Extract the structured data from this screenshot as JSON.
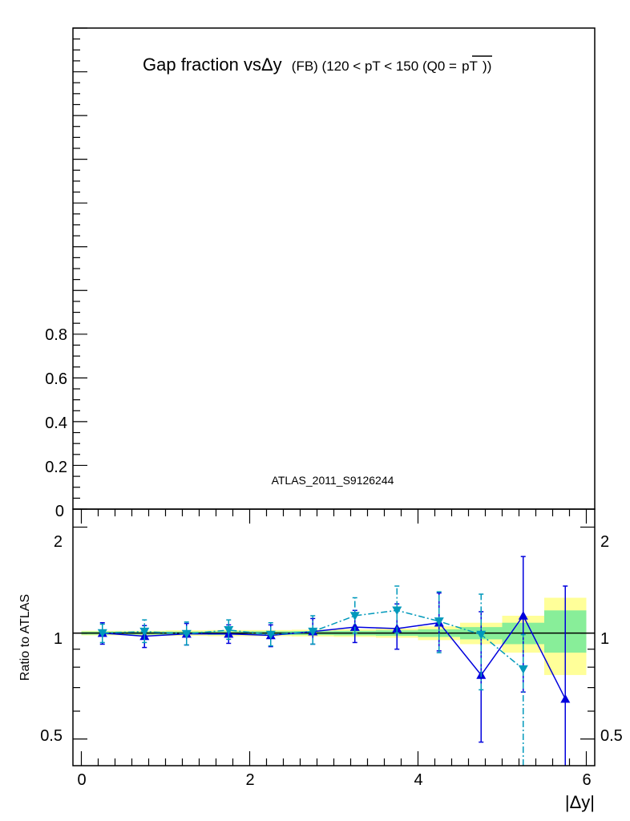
{
  "chart_data": [
    {
      "type": "line",
      "panel": "main",
      "title": "Gap fraction vsΔy",
      "title_sub": "(FB) (120 < pT < 150 (Q0 =",
      "title_overline": "pT",
      "title_close": "))",
      "annotation": "ATLAS_2011_S9126244",
      "yticks": [
        "0.2",
        "0.4",
        "0.6",
        "0.8"
      ],
      "ytick_cut": "0",
      "ylim": [
        0,
        2.2
      ]
    },
    {
      "type": "line",
      "panel": "ratio",
      "ylabel": "Ratio to ATLAS",
      "xlabel": "|Δy|",
      "xticks": [
        "0",
        "2",
        "4",
        "6"
      ],
      "yticks_left": [
        "0.5",
        "1",
        "2"
      ],
      "yticks_right": [
        "0.5",
        "1",
        "2"
      ],
      "xlim": [
        -0.1,
        6.1
      ],
      "ylim": [
        0.42,
        2.25
      ],
      "log_y": true,
      "reference_line": 1.0,
      "bands": [
        {
          "x0": 0.0,
          "x1": 0.5,
          "lo_yellow": 0.985,
          "hi_yellow": 1.015,
          "lo_green": 0.99,
          "hi_green": 1.01
        },
        {
          "x0": 0.5,
          "x1": 1.0,
          "lo_yellow": 0.985,
          "hi_yellow": 1.015,
          "lo_green": 0.99,
          "hi_green": 1.01
        },
        {
          "x0": 1.0,
          "x1": 1.5,
          "lo_yellow": 0.982,
          "hi_yellow": 1.018,
          "lo_green": 0.99,
          "hi_green": 1.01
        },
        {
          "x0": 1.5,
          "x1": 2.0,
          "lo_yellow": 0.98,
          "hi_yellow": 1.02,
          "lo_green": 0.988,
          "hi_green": 1.012
        },
        {
          "x0": 2.0,
          "x1": 2.5,
          "lo_yellow": 0.98,
          "hi_yellow": 1.02,
          "lo_green": 0.988,
          "hi_green": 1.012
        },
        {
          "x0": 2.5,
          "x1": 3.0,
          "lo_yellow": 0.978,
          "hi_yellow": 1.022,
          "lo_green": 0.987,
          "hi_green": 1.013
        },
        {
          "x0": 3.0,
          "x1": 3.5,
          "lo_yellow": 0.975,
          "hi_yellow": 1.025,
          "lo_green": 0.985,
          "hi_green": 1.015
        },
        {
          "x0": 3.5,
          "x1": 4.0,
          "lo_yellow": 0.97,
          "hi_yellow": 1.03,
          "lo_green": 0.982,
          "hi_green": 1.018
        },
        {
          "x0": 4.0,
          "x1": 4.5,
          "lo_yellow": 0.955,
          "hi_yellow": 1.045,
          "lo_green": 0.975,
          "hi_green": 1.025
        },
        {
          "x0": 4.5,
          "x1": 5.0,
          "lo_yellow": 0.93,
          "hi_yellow": 1.07,
          "lo_green": 0.96,
          "hi_green": 1.04
        },
        {
          "x0": 5.0,
          "x1": 5.5,
          "lo_yellow": 0.88,
          "hi_yellow": 1.12,
          "lo_green": 0.93,
          "hi_green": 1.07
        },
        {
          "x0": 5.5,
          "x1": 6.0,
          "lo_yellow": 0.76,
          "hi_yellow": 1.26,
          "lo_green": 0.88,
          "hi_green": 1.16
        }
      ],
      "series": [
        {
          "marker": "triangle-up",
          "color": "#0000dd",
          "dash": "solid",
          "x": [
            0.25,
            0.75,
            1.25,
            1.75,
            2.25,
            2.75,
            3.25,
            3.75,
            4.25,
            4.75,
            5.25,
            5.75
          ],
          "y": [
            1.0,
            0.98,
            0.995,
            0.995,
            0.985,
            1.01,
            1.04,
            1.03,
            1.07,
            0.76,
            1.12,
            0.65
          ],
          "err_lo": [
            0.07,
            0.07,
            0.07,
            0.06,
            0.07,
            0.08,
            0.1,
            0.13,
            0.18,
            0.27,
            0.44,
            0.65
          ],
          "err_hi": [
            0.07,
            0.07,
            0.07,
            0.06,
            0.07,
            0.09,
            0.12,
            0.18,
            0.23,
            0.39,
            0.53,
            0.71
          ]
        },
        {
          "marker": "triangle-down",
          "color": "#0099bb",
          "dash": "dashdot",
          "x": [
            0.25,
            0.75,
            1.25,
            1.75,
            2.25,
            2.75,
            3.25,
            3.75,
            4.25,
            4.75,
            5.25
          ],
          "y": [
            1.0,
            1.01,
            0.995,
            1.02,
            0.99,
            1.01,
            1.12,
            1.16,
            1.08,
            0.99,
            0.79
          ],
          "err_lo": [
            0.06,
            0.07,
            0.07,
            0.06,
            0.07,
            0.08,
            0.12,
            0.16,
            0.2,
            0.3,
            0.45
          ],
          "err_hi": [
            0.06,
            0.08,
            0.08,
            0.07,
            0.08,
            0.11,
            0.14,
            0.2,
            0.23,
            0.3,
            0.2
          ]
        }
      ]
    }
  ]
}
